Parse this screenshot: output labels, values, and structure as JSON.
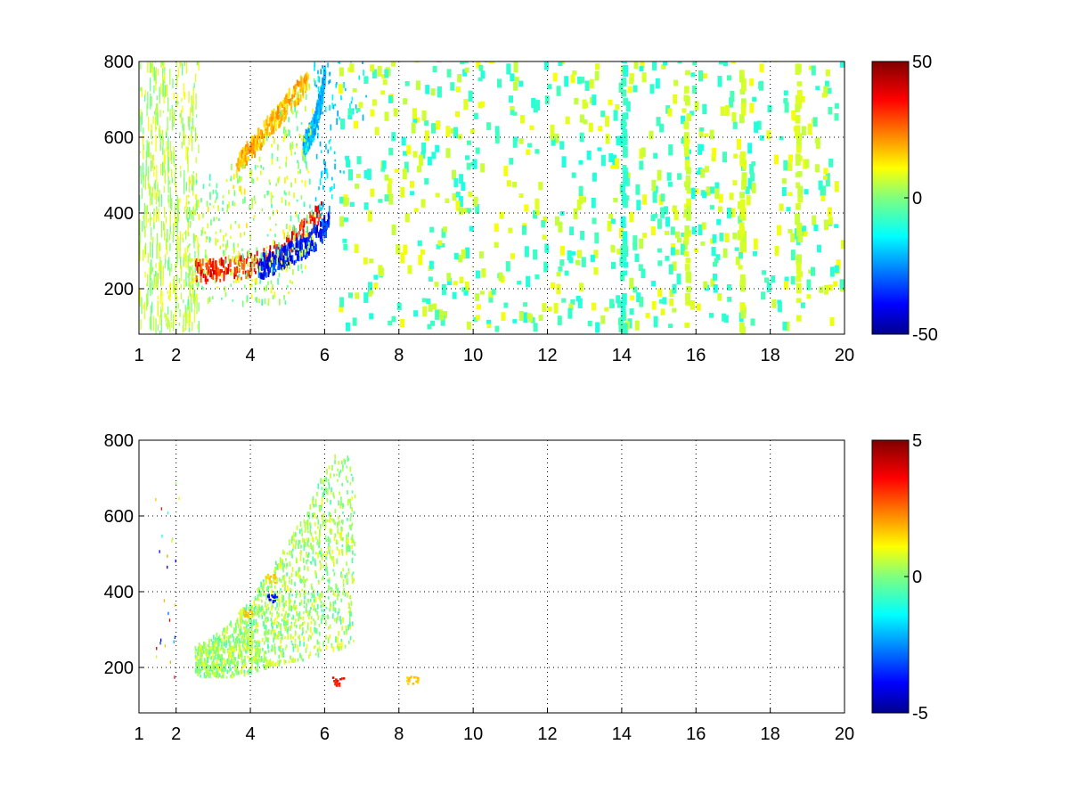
{
  "chart_data": [
    {
      "type": "heatmap",
      "title": "",
      "xlabel": "",
      "ylabel": "",
      "xlim": [
        1,
        20
      ],
      "ylim": [
        80,
        800
      ],
      "grid": true,
      "x_ticks": [
        {
          "v": 1,
          "label": "1"
        },
        {
          "v": 2,
          "label": "2"
        },
        {
          "v": 4,
          "label": "4"
        },
        {
          "v": 6,
          "label": "6"
        },
        {
          "v": 8,
          "label": "8"
        },
        {
          "v": 10,
          "label": "10"
        },
        {
          "v": 12,
          "label": "12"
        },
        {
          "v": 14,
          "label": "14"
        },
        {
          "v": 16,
          "label": "16"
        },
        {
          "v": 18,
          "label": "18"
        },
        {
          "v": 20,
          "label": "20"
        }
      ],
      "y_ticks": [
        {
          "v": 200,
          "label": "200"
        },
        {
          "v": 400,
          "label": "400"
        },
        {
          "v": 600,
          "label": "600"
        },
        {
          "v": 800,
          "label": "800"
        }
      ],
      "colorbar": {
        "colormap": "jet",
        "range": [
          -50,
          50
        ],
        "ticks": [
          {
            "v": -50,
            "label": "-50"
          },
          {
            "v": 0,
            "label": "0"
          },
          {
            "v": 50,
            "label": "50"
          }
        ]
      },
      "features": [
        {
          "kind": "curve-band",
          "desc": "positive ridge",
          "points": [
            [
              2.5,
              235
            ],
            [
              3.5,
              245
            ],
            [
              4.0,
              255
            ],
            [
              4.5,
              280
            ],
            [
              5.0,
              310
            ],
            [
              5.5,
              350
            ],
            [
              5.9,
              400
            ]
          ],
          "value": 45
        },
        {
          "kind": "curve-band",
          "desc": "negative ridge",
          "points": [
            [
              4.2,
              245
            ],
            [
              4.6,
              260
            ],
            [
              5.0,
              280
            ],
            [
              5.4,
              300
            ],
            [
              5.8,
              330
            ],
            [
              6.1,
              370
            ]
          ],
          "value": -45
        },
        {
          "kind": "curve-band",
          "desc": "upper positive ridge",
          "points": [
            [
              3.6,
              520
            ],
            [
              4.0,
              560
            ],
            [
              4.5,
              620
            ],
            [
              5.0,
              680
            ],
            [
              5.5,
              740
            ]
          ],
          "value": 25
        },
        {
          "kind": "curve-band",
          "desc": "upper negative edge",
          "points": [
            [
              5.4,
              560
            ],
            [
              5.7,
              620
            ],
            [
              5.9,
              700
            ],
            [
              6.0,
              760
            ]
          ],
          "value": -25
        },
        {
          "kind": "vertical-stripe",
          "x": 15.7,
          "value": 8
        },
        {
          "kind": "vertical-stripe",
          "x": 17.2,
          "value": 8
        },
        {
          "kind": "vertical-stripe",
          "x": 14.0,
          "value": -8
        },
        {
          "kind": "vertical-stripe",
          "x": 18.7,
          "value": 8
        }
      ]
    },
    {
      "type": "heatmap",
      "title": "",
      "xlabel": "",
      "ylabel": "",
      "xlim": [
        1,
        20
      ],
      "ylim": [
        80,
        800
      ],
      "grid": true,
      "x_ticks": [
        {
          "v": 1,
          "label": "1"
        },
        {
          "v": 2,
          "label": "2"
        },
        {
          "v": 4,
          "label": "4"
        },
        {
          "v": 6,
          "label": "6"
        },
        {
          "v": 8,
          "label": "8"
        },
        {
          "v": 10,
          "label": "10"
        },
        {
          "v": 12,
          "label": "12"
        },
        {
          "v": 14,
          "label": "14"
        },
        {
          "v": 16,
          "label": "16"
        },
        {
          "v": 18,
          "label": "18"
        },
        {
          "v": 20,
          "label": "20"
        }
      ],
      "y_ticks": [
        {
          "v": 200,
          "label": "200"
        },
        {
          "v": 400,
          "label": "400"
        },
        {
          "v": 600,
          "label": "600"
        },
        {
          "v": 800,
          "label": "800"
        }
      ],
      "colorbar": {
        "colormap": "jet",
        "range": [
          -5,
          5
        ],
        "ticks": [
          {
            "v": -5,
            "label": "-5"
          },
          {
            "v": 0,
            "label": "0"
          },
          {
            "v": 5,
            "label": "5"
          }
        ]
      },
      "features": [
        {
          "kind": "patch",
          "desc": "dense near-zero region",
          "x": [
            2.5,
            6.8
          ],
          "y": [
            170,
            760
          ],
          "value": 0.3
        },
        {
          "kind": "blob",
          "x": 4.6,
          "y": 380,
          "value": -4
        },
        {
          "kind": "blob",
          "x": 4.5,
          "y": 430,
          "value": 2
        },
        {
          "kind": "blob",
          "x": 3.9,
          "y": 340,
          "value": 2
        },
        {
          "kind": "blob",
          "x": 6.35,
          "y": 160,
          "value": 4
        },
        {
          "kind": "blob",
          "x": 8.35,
          "y": 165,
          "value": 2
        }
      ]
    }
  ]
}
